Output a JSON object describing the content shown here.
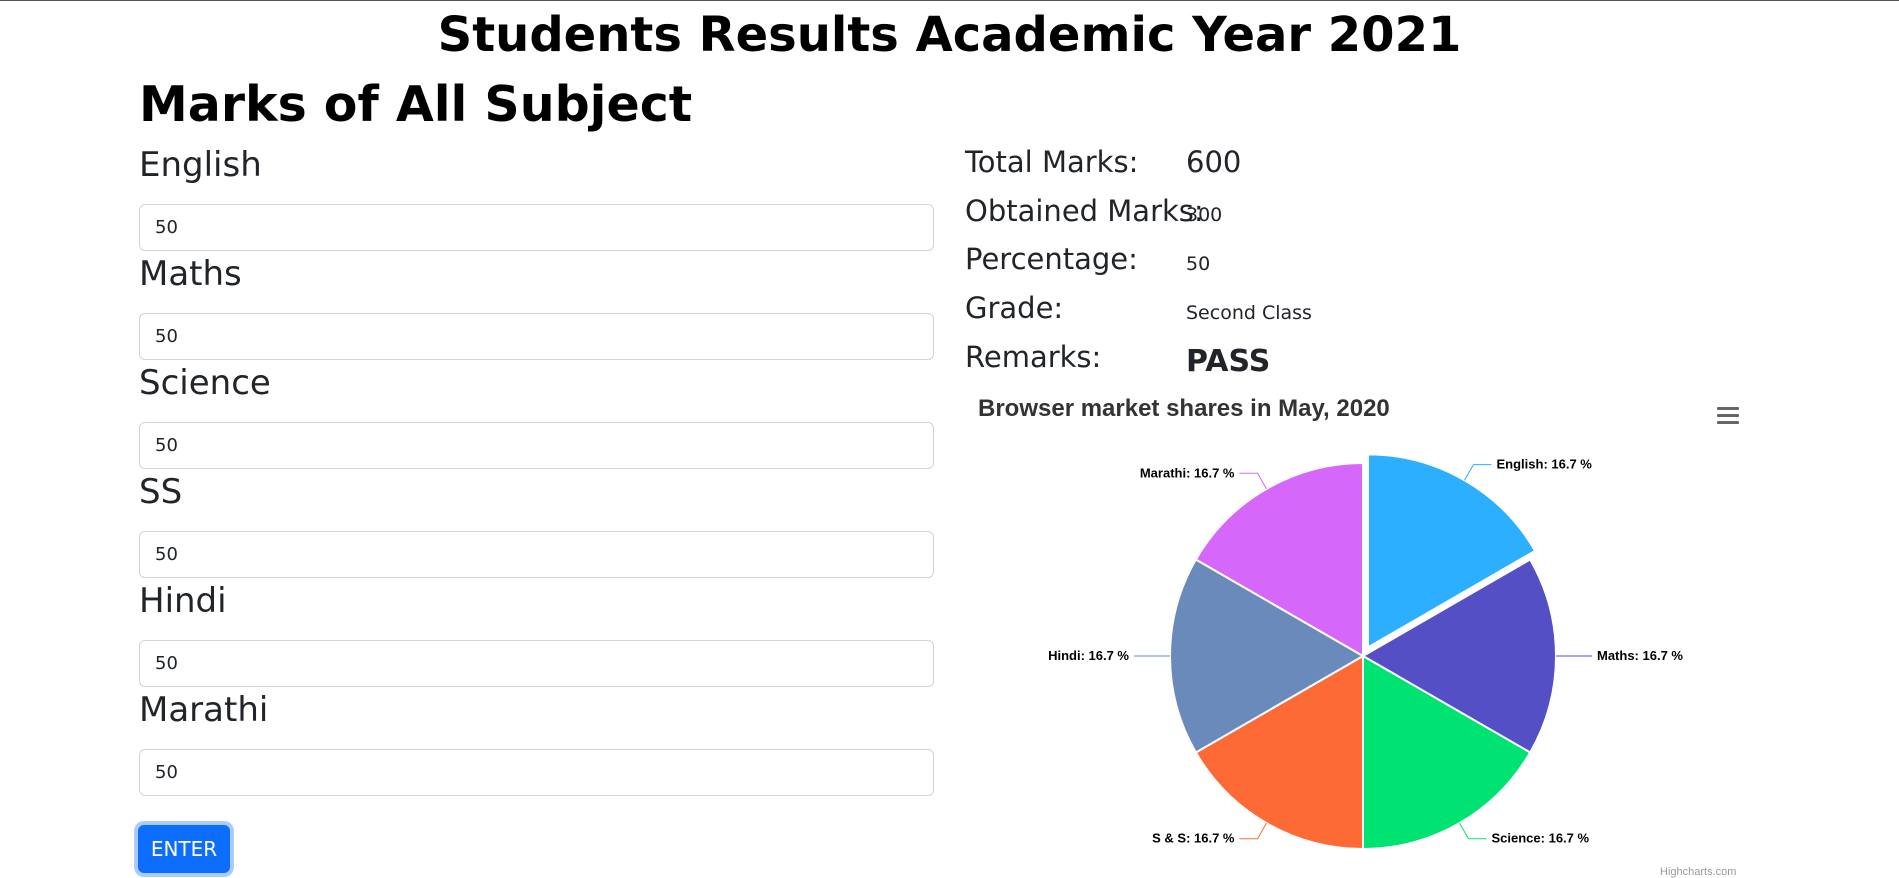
{
  "page_title": "Students Results Academic Year 2021",
  "section_title": "Marks of All Subject",
  "subjects": [
    {
      "label": "English",
      "value": "50"
    },
    {
      "label": "Maths",
      "value": "50"
    },
    {
      "label": "Science",
      "value": "50"
    },
    {
      "label": "SS",
      "value": "50"
    },
    {
      "label": "Hindi",
      "value": "50"
    },
    {
      "label": "Marathi",
      "value": "50"
    }
  ],
  "enter_button": "ENTER",
  "summary": {
    "total_label": "Total Marks:",
    "total_value": "600",
    "obtained_label": "Obtained Marks:",
    "obtained_value": "300",
    "percentage_label": "Percentage:",
    "percentage_value": "50",
    "grade_label": "Grade:",
    "grade_value": "Second Class",
    "remarks_label": "Remarks:",
    "remarks_value": "PASS"
  },
  "chart_menu_icon": "hamburger-menu-icon",
  "chart_credits": "Highcharts.com",
  "chart_data": {
    "type": "pie",
    "title": "Browser market shares in May, 2020",
    "slices": [
      {
        "name": "English",
        "value": 16.7,
        "color": "#2caffe",
        "label": "English: 16.7 %",
        "sliced": true
      },
      {
        "name": "Maths",
        "value": 16.7,
        "color": "#544fc5",
        "label": "Maths: 16.7 %"
      },
      {
        "name": "Science",
        "value": 16.7,
        "color": "#00e272",
        "label": "Science: 16.7 %"
      },
      {
        "name": "S & S",
        "value": 16.7,
        "color": "#fe6a35",
        "label": "S & S: 16.7 %"
      },
      {
        "name": "Hindi",
        "value": 16.7,
        "color": "#6b8abc",
        "label": "Hindi: 16.7 %"
      },
      {
        "name": "Marathi",
        "value": 16.7,
        "color": "#d568fb",
        "label": "Marathi: 16.7 %"
      }
    ]
  }
}
